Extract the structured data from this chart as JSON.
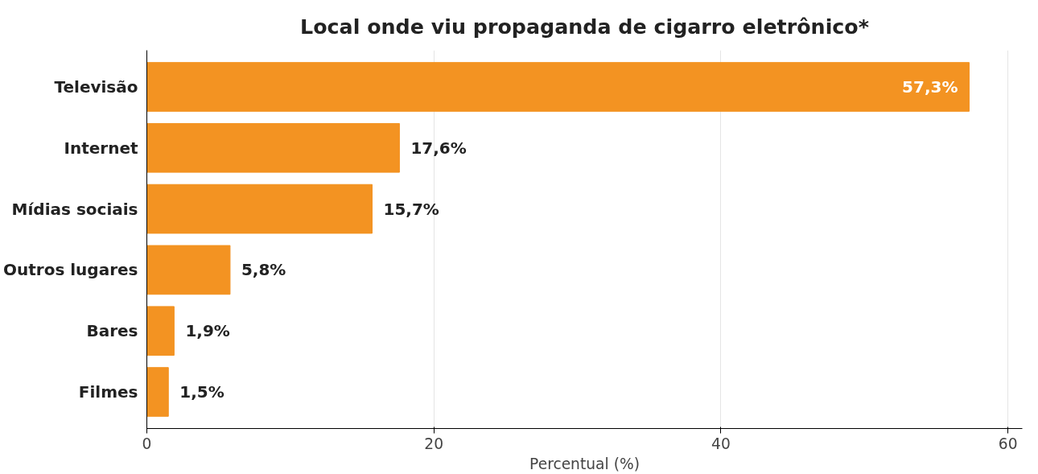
{
  "chart_data": {
    "type": "bar",
    "orientation": "horizontal",
    "title": "Local onde viu propaganda de cigarro eletrônico*",
    "xlabel": "Percentual (%)",
    "categories": [
      "Televisão",
      "Internet",
      "Mídias sociais",
      "Outros lugares",
      "Bares",
      "Filmes"
    ],
    "values": [
      57.3,
      17.6,
      15.7,
      5.8,
      1.9,
      1.5
    ],
    "value_labels": [
      "57,3%",
      "17,6%",
      "15,7%",
      "5,8%",
      "1,9%",
      "1,5%"
    ],
    "color": "#f39322",
    "xlim": [
      0,
      61
    ],
    "xticks": [
      0,
      20,
      40,
      60
    ],
    "grid": "x"
  }
}
